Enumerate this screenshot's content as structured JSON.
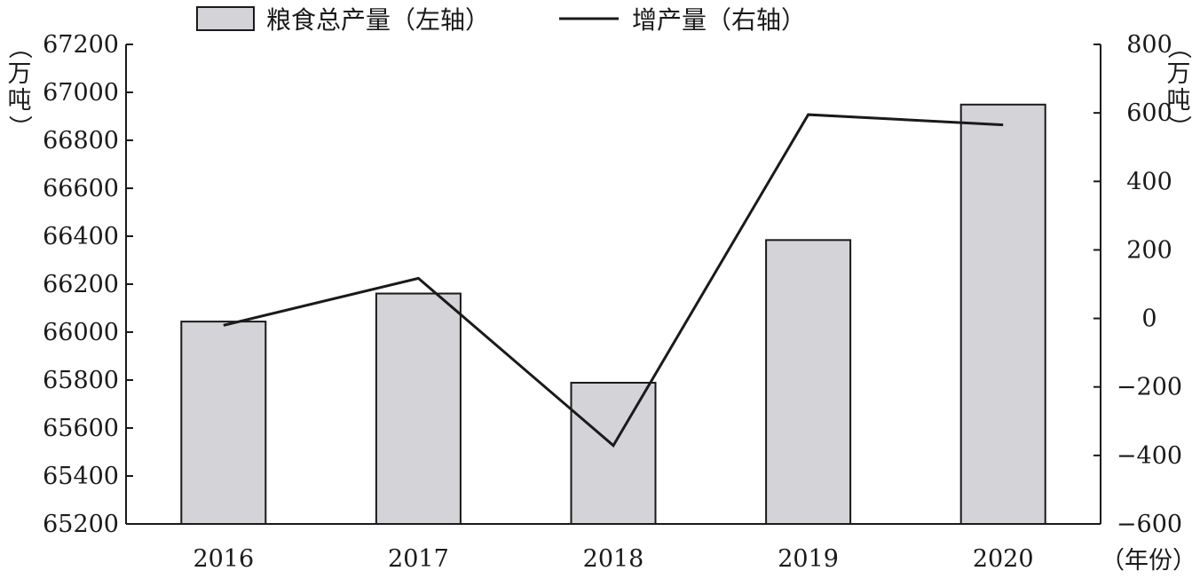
{
  "chart_data": {
    "type": "bar+line",
    "categories": [
      "2016",
      "2017",
      "2018",
      "2019",
      "2020"
    ],
    "series": [
      {
        "name": "粮食总产量（左轴）",
        "type": "bar",
        "axis": "left",
        "values": [
          66044,
          66161,
          65789,
          66384,
          66949
        ],
        "color": "#d3d3d8"
      },
      {
        "name": "增产量（右轴）",
        "type": "line",
        "axis": "right",
        "values": [
          -20,
          117,
          -371,
          595,
          565
        ],
        "color": "#1a1a1a"
      }
    ],
    "left_axis": {
      "unit": "（万吨）",
      "ylim": [
        65200,
        67200
      ],
      "ticks": [
        "65200",
        "65400",
        "65600",
        "65800",
        "66000",
        "66200",
        "66400",
        "66600",
        "66800",
        "67000",
        "67200"
      ]
    },
    "right_axis": {
      "unit": "（万吨）",
      "ylim": [
        -600,
        800
      ],
      "ticks": [
        "−600",
        "−400",
        "−200",
        "0",
        "200",
        "400",
        "600",
        "800"
      ]
    },
    "x_axis": {
      "unit": "（年份）"
    },
    "legend": {
      "position": "top-center"
    },
    "grid": false
  }
}
